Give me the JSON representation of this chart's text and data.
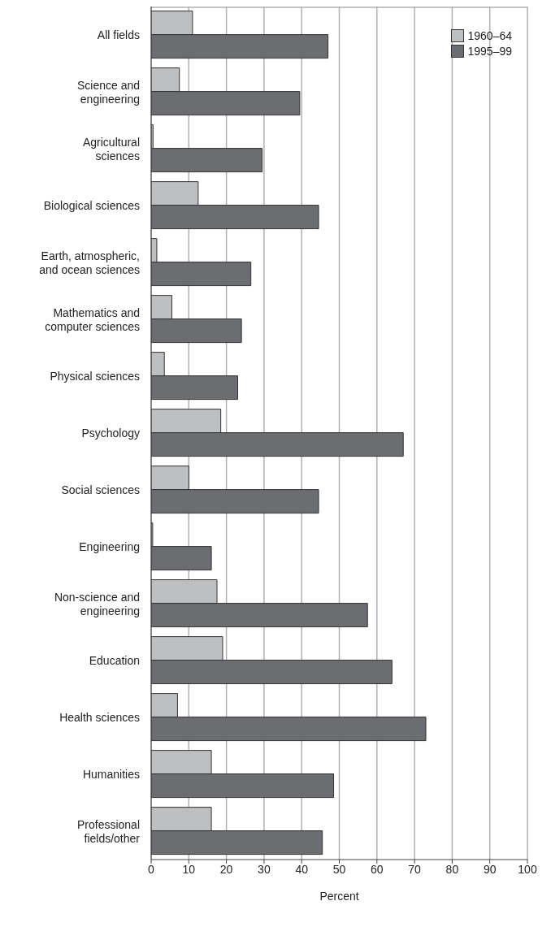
{
  "chart_data": {
    "type": "bar",
    "orientation": "horizontal",
    "categories": [
      "All fields",
      "Science and engineering",
      "Agricultural sciences",
      "Biological sciences",
      "Earth, atmospheric, and ocean sciences",
      "Mathematics and computer sciences",
      "Physical sciences",
      "Psychology",
      "Social sciences",
      "Engineering",
      "Non-science and engineering",
      "Education",
      "Health sciences",
      "Humanities",
      "Professional fields/other"
    ],
    "series": [
      {
        "name": "1960–64",
        "color": "#bebfc1",
        "values": [
          11,
          7.5,
          0.5,
          12.5,
          1.5,
          5.5,
          3.5,
          18.5,
          10,
          0.4,
          17.5,
          19,
          7,
          16,
          16
        ]
      },
      {
        "name": "1995–99",
        "color": "#6c6d70",
        "values": [
          47,
          39.5,
          29.5,
          44.5,
          26.5,
          24,
          23,
          67,
          44.5,
          16,
          57.5,
          64,
          73,
          48.5,
          45.5
        ]
      }
    ],
    "xlabel": "Percent",
    "xlim": [
      0,
      100
    ],
    "xticks": [
      0,
      10,
      20,
      30,
      40,
      50,
      60,
      70,
      80,
      90,
      100
    ],
    "grid": "x",
    "legend": "top right"
  }
}
